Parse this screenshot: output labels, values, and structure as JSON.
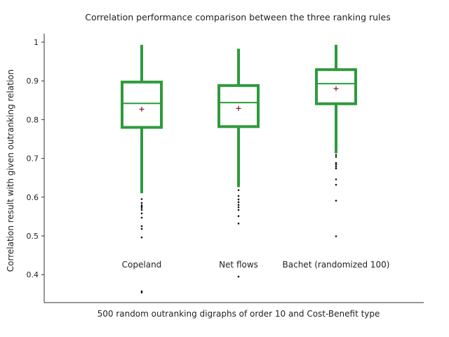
{
  "chart_data": {
    "type": "boxplot",
    "title": "Correlation performance comparison between the three ranking rules",
    "xlabel": "500 random outranking digraphs of order 10 and Cost-Benefit type",
    "ylabel": "Correlation result with given outranking relation",
    "ylim": [
      0.33,
      1.02
    ],
    "yticks": [
      0.4,
      0.5,
      0.6,
      0.7,
      0.8,
      0.9,
      1
    ],
    "ytick_labels": [
      "0.4",
      "0.5",
      "0.6",
      "0.7",
      "0.8",
      "0.9",
      "1"
    ],
    "grid": false,
    "box_color": "#2e9b3c",
    "mean_marker_color": "#7a1c2a",
    "outlier_color": "#111111",
    "series": [
      {
        "category": "Copeland",
        "whisker_high": 0.993,
        "q3": 0.897,
        "median": 0.842,
        "q1": 0.78,
        "whisker_low": 0.61,
        "mean": 0.827,
        "outliers": [
          0.595,
          0.585,
          0.579,
          0.576,
          0.572,
          0.567,
          0.558,
          0.547,
          0.525,
          0.518,
          0.496,
          0.357,
          0.354
        ]
      },
      {
        "category": "Net flows",
        "whisker_high": 0.983,
        "q3": 0.888,
        "median": 0.844,
        "q1": 0.782,
        "whisker_low": 0.626,
        "mean": 0.829,
        "outliers": [
          0.618,
          0.603,
          0.594,
          0.587,
          0.58,
          0.574,
          0.567,
          0.551,
          0.532,
          0.395
        ]
      },
      {
        "category": "Bachet (randomized 100)",
        "whisker_high": 0.993,
        "q3": 0.929,
        "median": 0.893,
        "q1": 0.841,
        "whisker_low": 0.713,
        "mean": 0.88,
        "outliers": [
          0.709,
          0.704,
          0.688,
          0.684,
          0.679,
          0.674,
          0.646,
          0.632,
          0.591,
          0.499
        ]
      }
    ]
  }
}
